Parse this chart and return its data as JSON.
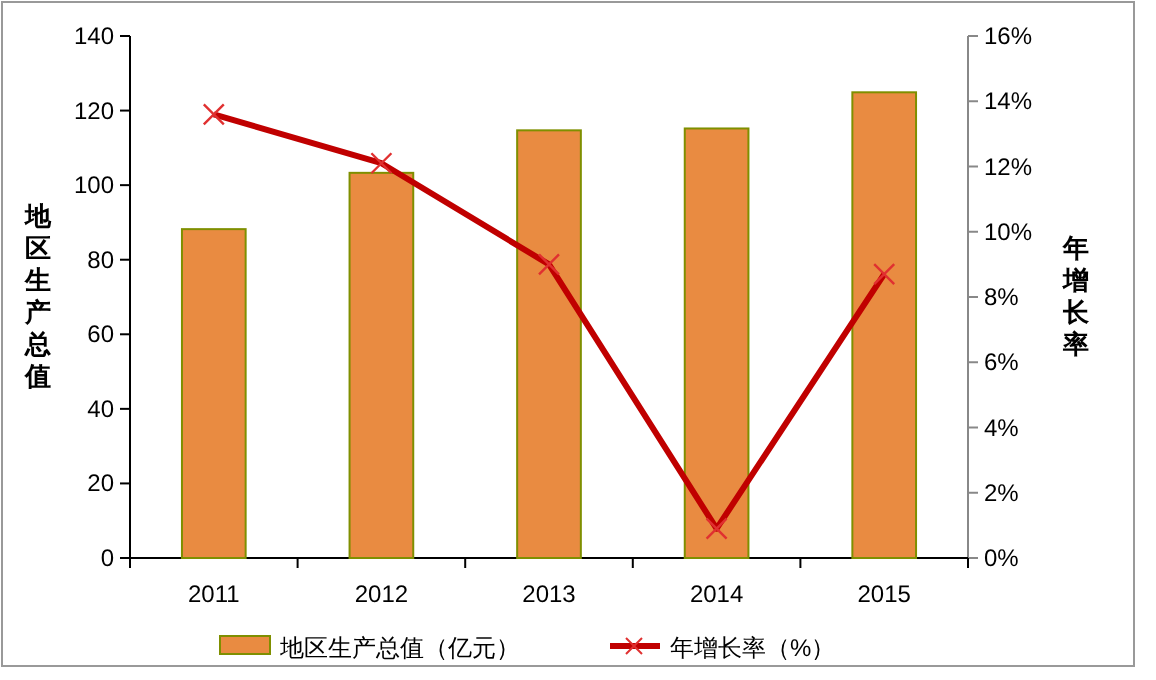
{
  "chart_data": {
    "type": "bar",
    "ylabel": "地区生产总值",
    "y2label": "年增长率",
    "categories": [
      "2011",
      "2012",
      "2013",
      "2014",
      "2015"
    ],
    "series": [
      {
        "name": "地区生产总值（亿元）",
        "color": "#e98b41",
        "values": [
          88.2,
          103.3,
          114.7,
          115.2,
          124.9
        ]
      },
      {
        "name": "年增长率（%）",
        "type": "line",
        "axis": "y2",
        "color": "#c00000",
        "marker": "cross",
        "values": [
          13.6,
          12.1,
          9.0,
          0.9,
          8.7
        ]
      }
    ],
    "ylim": [
      0,
      140
    ],
    "yticks": [
      0,
      20,
      40,
      60,
      80,
      100,
      120,
      140
    ],
    "y2lim": [
      0,
      16
    ],
    "y2ticks": [
      {
        "value": 0,
        "label": "0%"
      },
      {
        "value": 2,
        "label": "2%"
      },
      {
        "value": 4,
        "label": "4%"
      },
      {
        "value": 6,
        "label": "6%"
      },
      {
        "value": 8,
        "label": "8%"
      },
      {
        "value": 10,
        "label": "10%"
      },
      {
        "value": 12,
        "label": "12%"
      },
      {
        "value": 14,
        "label": "14%"
      },
      {
        "value": 16,
        "label": "16%"
      }
    ],
    "grid": false,
    "legend": "bottom"
  }
}
